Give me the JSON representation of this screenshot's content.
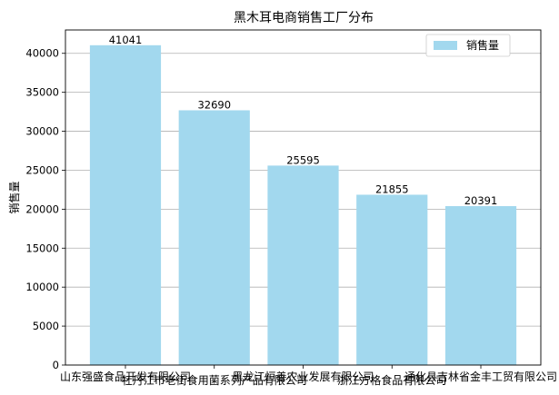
{
  "chart_data": {
    "type": "bar",
    "title": "黑木耳电商销售工厂分布",
    "xlabel": "",
    "ylabel": "销售量",
    "categories": [
      "山东强盛食品开发有限公司",
      "牡丹江市老街食用菌系列产品有限公司",
      "黑龙江恒善农业发展有限公司",
      "浙江方格食品有限公司",
      "通化县吉林省金丰工贸有限公司"
    ],
    "series": [
      {
        "name": "销售量",
        "values": [
          41041,
          32690,
          25595,
          21855,
          20391
        ]
      }
    ],
    "ylim": [
      0,
      43000
    ],
    "yticks": [
      0,
      5000,
      10000,
      15000,
      20000,
      25000,
      30000,
      35000,
      40000
    ],
    "grid": "y",
    "legend_position": "top-right",
    "bar_color": "#a2d8ee"
  }
}
